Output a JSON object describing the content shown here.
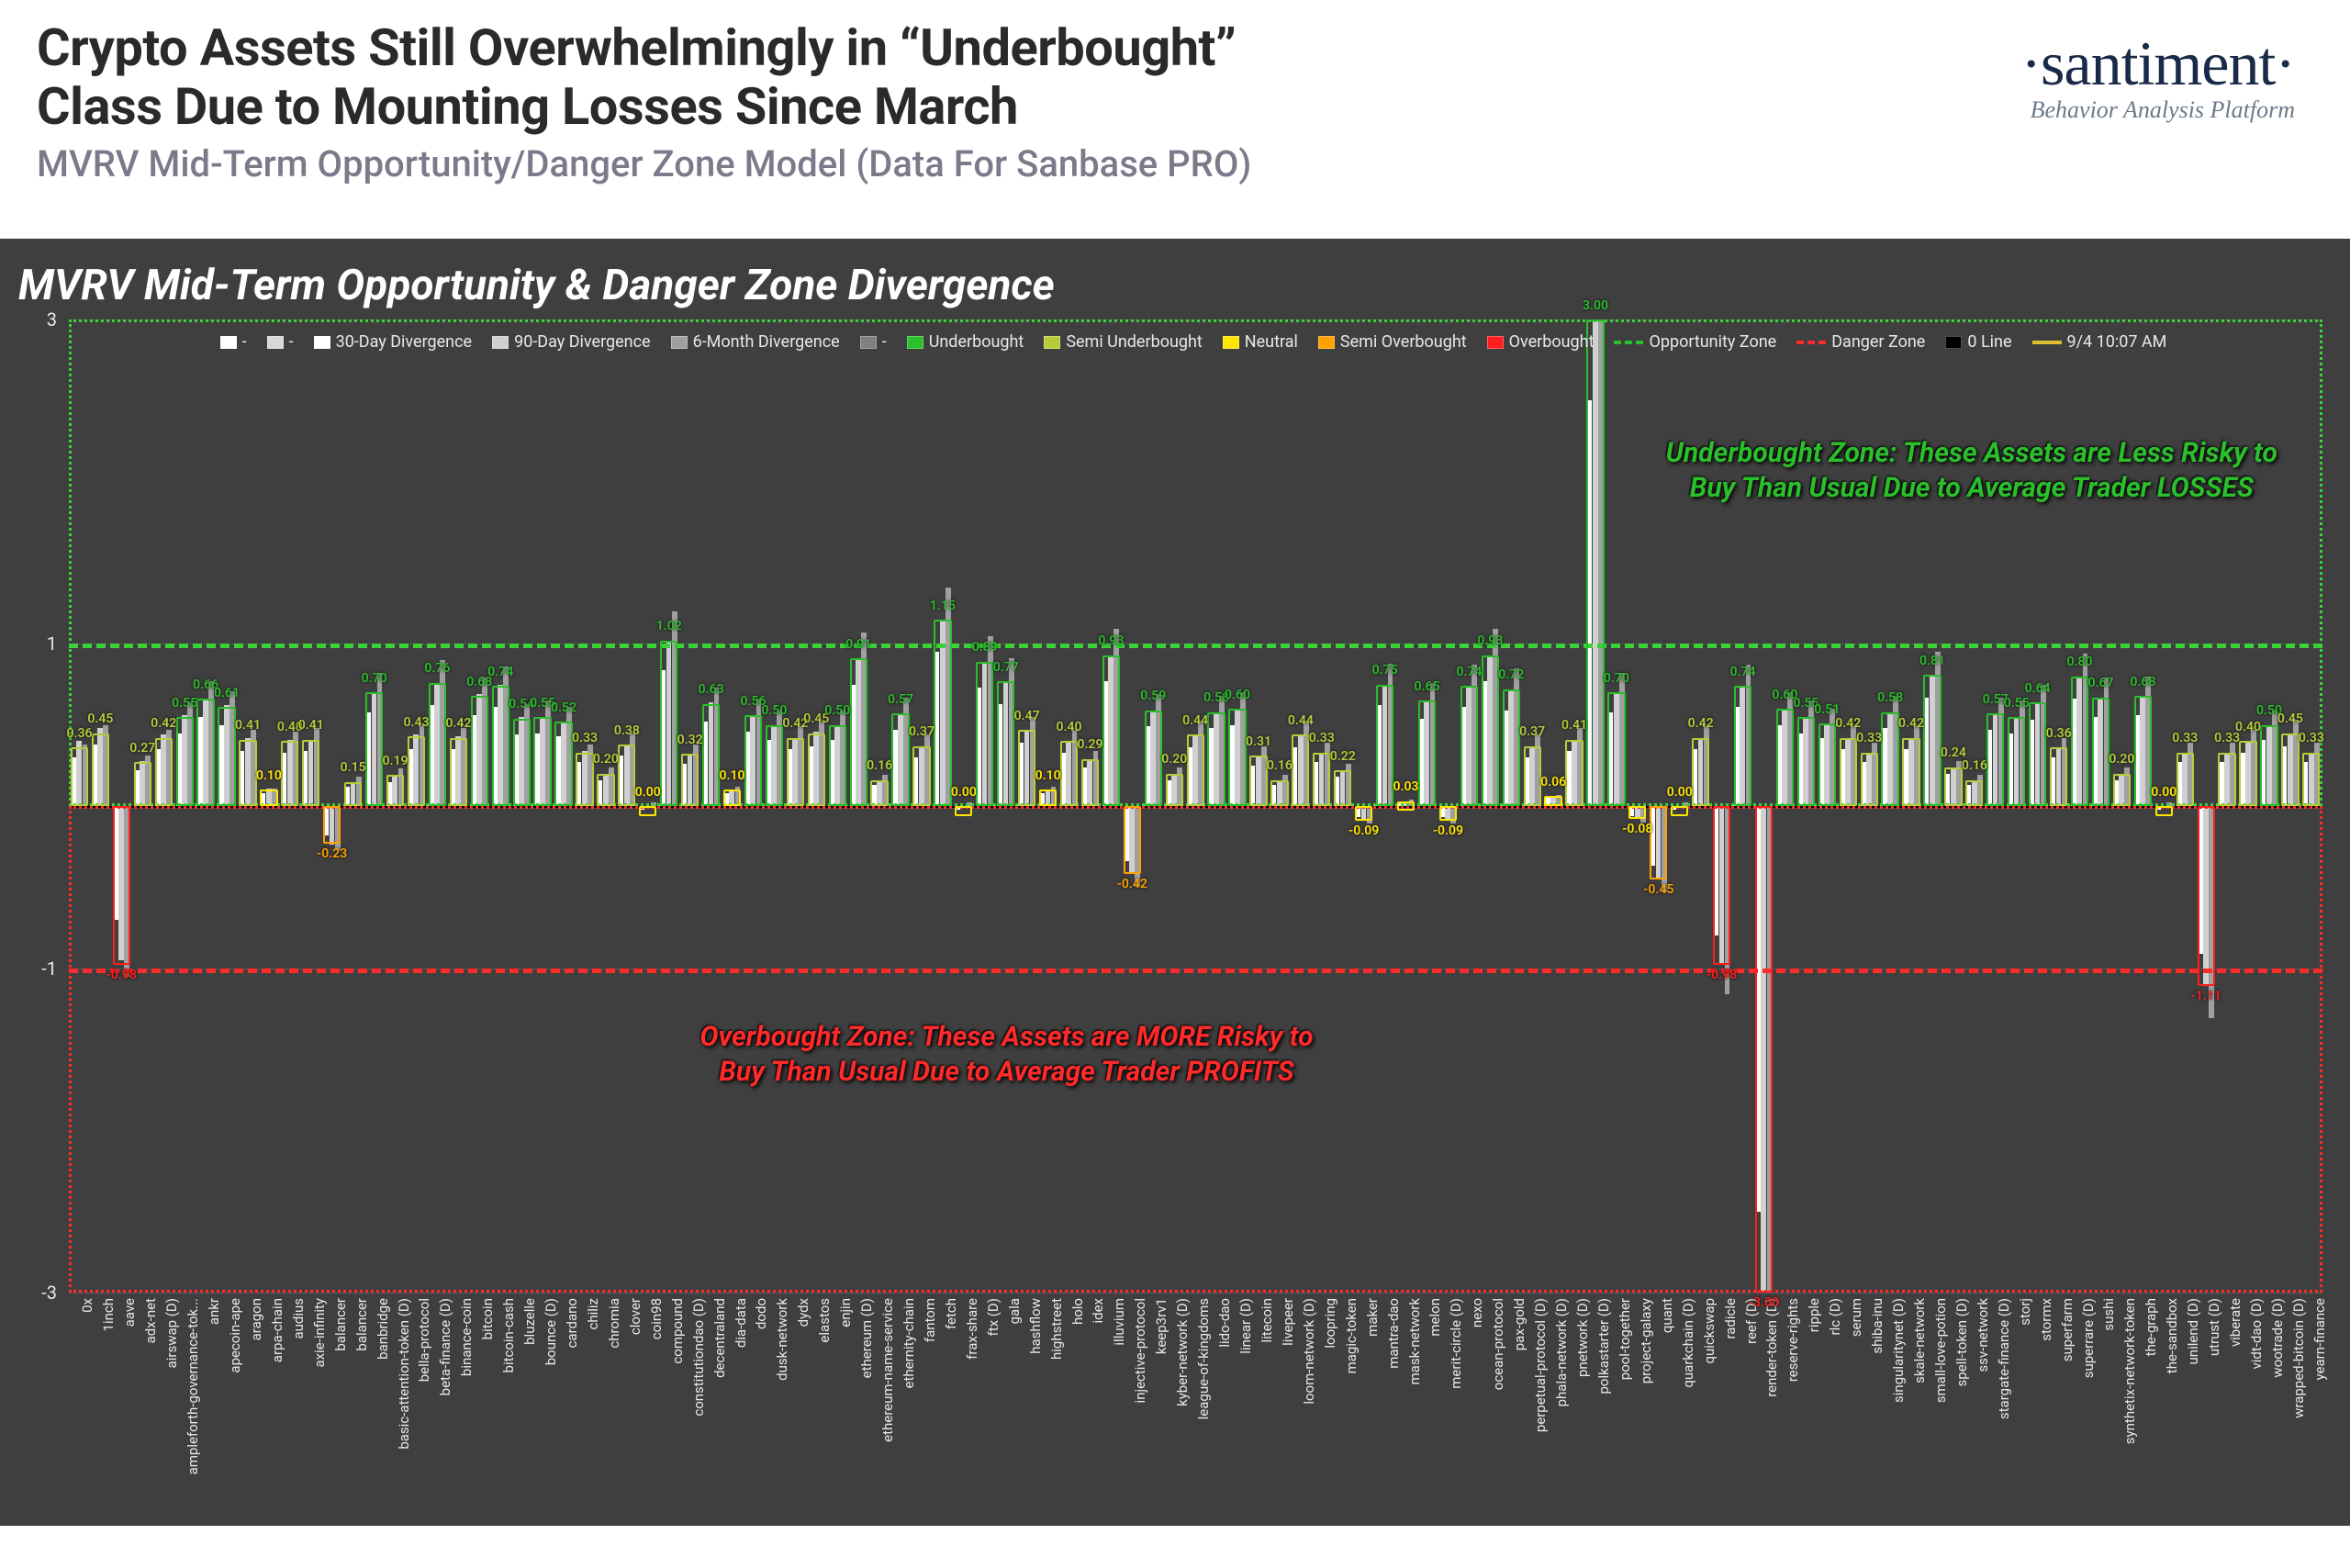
{
  "header": {
    "title_line1": "Crypto Assets Still Overwhelmingly in “Underbought”",
    "title_line2": "Class Due to Mounting Losses Since March",
    "subtitle": "MVRV Mid-Term Opportunity/Danger Zone Model (Data For Sanbase PRO)",
    "brand": "·santiment·",
    "tagline": "Behavior Analysis Platform"
  },
  "chart": {
    "title": "MVRV Mid-Term Opportunity & Danger Zone Divergence",
    "background": "#3f3f3f",
    "yaxis": {
      "min": -3,
      "max": 3,
      "ticks": [
        -3,
        -1,
        1,
        3
      ]
    },
    "zones": {
      "opportunity_line": 1,
      "danger_line": -1,
      "opportunity_color": "#3bd13b",
      "danger_color": "#ff2a2a",
      "zero_color": "#000000"
    },
    "legend": [
      {
        "type": "swatch",
        "color": "#ffffff",
        "label": "-"
      },
      {
        "type": "swatch",
        "color": "#d8d8d8",
        "label": "-"
      },
      {
        "type": "swatch",
        "color": "#ffffff",
        "label": "30-Day Divergence"
      },
      {
        "type": "swatch",
        "color": "#d0d0d0",
        "label": "90-Day Divergence"
      },
      {
        "type": "swatch",
        "color": "#a0a0a0",
        "label": "6-Month Divergence"
      },
      {
        "type": "swatch",
        "color": "#808080",
        "label": "-"
      },
      {
        "type": "swatch",
        "color": "#2bbf2b",
        "label": "Underbought"
      },
      {
        "type": "swatch",
        "color": "#b8cc3a",
        "label": "Semi Underbought"
      },
      {
        "type": "swatch",
        "color": "#ffe600",
        "label": "Neutral"
      },
      {
        "type": "swatch",
        "color": "#ffa200",
        "label": "Semi Overbought"
      },
      {
        "type": "swatch",
        "color": "#ff1e1e",
        "label": "Overbought"
      },
      {
        "type": "line",
        "color": "#2bbf2b",
        "label": "Opportunity Zone",
        "dash": true
      },
      {
        "type": "line",
        "color": "#ff2a2a",
        "label": "Danger Zone",
        "dash": true
      },
      {
        "type": "swatch",
        "color": "#000000",
        "label": "0 Line"
      },
      {
        "type": "line",
        "color": "#e0c030",
        "label": "9/4 10:07 AM",
        "dash": false
      }
    ],
    "annotations": {
      "underbought": "Underbought Zone: These Assets are Less Risky to\nBuy Than Usual Due to Average Trader LOSSES",
      "overbought": "Overbought Zone: These Assets are MORE Risky to\nBuy Than Usual Due to Average Trader PROFITS"
    },
    "class_colors": {
      "underbought": "#2bbf2b",
      "semi_under": "#b8cc3a",
      "neutral": "#ffe600",
      "semi_over": "#ffa200",
      "overbought": "#ff1e1e"
    },
    "assets": [
      {
        "n": "0x",
        "v": 0.36,
        "d": [
          0.3,
          0.4,
          0.38
        ]
      },
      {
        "n": "1inch",
        "v": 0.45,
        "d": [
          0.38,
          0.48,
          0.5
        ]
      },
      {
        "n": "aave",
        "v": -0.98,
        "d": [
          -0.7,
          -0.95,
          -1.05
        ]
      },
      {
        "n": "adx-net",
        "v": 0.27,
        "d": [
          0.22,
          0.28,
          0.31
        ]
      },
      {
        "n": "airswap (D)",
        "v": 0.42,
        "d": [
          0.35,
          0.44,
          0.47
        ]
      },
      {
        "n": "ampleforth-governance-tok...",
        "v": 0.55,
        "d": [
          0.45,
          0.56,
          0.64
        ]
      },
      {
        "n": "ankr",
        "v": 0.66,
        "d": [
          0.55,
          0.66,
          0.77
        ]
      },
      {
        "n": "apecoin-ape",
        "v": 0.61,
        "d": [
          0.5,
          0.62,
          0.71
        ]
      },
      {
        "n": "aragon",
        "v": 0.41,
        "d": [
          0.34,
          0.42,
          0.47
        ]
      },
      {
        "n": "arpa-chain",
        "v": 0.1,
        "d": [
          0.08,
          0.11,
          0.11
        ]
      },
      {
        "n": "audius",
        "v": 0.4,
        "d": [
          0.33,
          0.41,
          0.46
        ]
      },
      {
        "n": "axie-infinity",
        "v": 0.41,
        "d": [
          0.34,
          0.41,
          0.48
        ]
      },
      {
        "n": "balancer",
        "v": -0.23,
        "d": [
          -0.18,
          -0.24,
          -0.27
        ]
      },
      {
        "n": "balancer",
        "v": 0.15,
        "d": [
          0.12,
          0.15,
          0.18
        ]
      },
      {
        "n": "banbridge",
        "v": 0.7,
        "d": [
          0.58,
          0.7,
          0.82
        ]
      },
      {
        "n": "basic-attention-token (D)",
        "v": 0.19,
        "d": [
          0.15,
          0.19,
          0.23
        ]
      },
      {
        "n": "bella-protocol",
        "v": 0.43,
        "d": [
          0.35,
          0.44,
          0.5
        ]
      },
      {
        "n": "beta-finance (D)",
        "v": 0.76,
        "d": [
          0.62,
          0.76,
          0.9
        ]
      },
      {
        "n": "binance-coin",
        "v": 0.42,
        "d": [
          0.35,
          0.43,
          0.48
        ]
      },
      {
        "n": "bitcoin",
        "v": 0.68,
        "d": [
          0.56,
          0.69,
          0.79
        ]
      },
      {
        "n": "bitcoin-cash",
        "v": 0.74,
        "d": [
          0.61,
          0.75,
          0.86
        ]
      },
      {
        "n": "bluzelle",
        "v": 0.54,
        "d": [
          0.44,
          0.55,
          0.63
        ]
      },
      {
        "n": "bounce (D)",
        "v": 0.55,
        "d": [
          0.45,
          0.55,
          0.65
        ]
      },
      {
        "n": "cardano",
        "v": 0.52,
        "d": [
          0.43,
          0.52,
          0.61
        ]
      },
      {
        "n": "chiliz",
        "v": 0.33,
        "d": [
          0.27,
          0.34,
          0.38
        ]
      },
      {
        "n": "chromia",
        "v": 0.2,
        "d": [
          0.16,
          0.2,
          0.24
        ]
      },
      {
        "n": "clover",
        "v": 0.38,
        "d": [
          0.31,
          0.38,
          0.45
        ]
      },
      {
        "n": "coin98",
        "v": 0.0,
        "d": [
          -0.02,
          0.0,
          0.02
        ]
      },
      {
        "n": "compound",
        "v": 1.02,
        "d": [
          0.84,
          1.02,
          1.2
        ]
      },
      {
        "n": "constitutiondao (D)",
        "v": 0.32,
        "d": [
          0.26,
          0.32,
          0.38
        ]
      },
      {
        "n": "decentraland",
        "v": 0.63,
        "d": [
          0.52,
          0.64,
          0.73
        ]
      },
      {
        "n": "dia-data",
        "v": 0.1,
        "d": [
          0.08,
          0.1,
          0.12
        ]
      },
      {
        "n": "dodo",
        "v": 0.56,
        "d": [
          0.46,
          0.56,
          0.66
        ]
      },
      {
        "n": "dusk-network",
        "v": 0.5,
        "d": [
          0.41,
          0.5,
          0.59
        ]
      },
      {
        "n": "dydx",
        "v": 0.42,
        "d": [
          0.35,
          0.42,
          0.49
        ]
      },
      {
        "n": "elastos",
        "v": 0.45,
        "d": [
          0.37,
          0.46,
          0.52
        ]
      },
      {
        "n": "enjin",
        "v": 0.5,
        "d": [
          0.41,
          0.5,
          0.59
        ]
      },
      {
        "n": "ethereum (D)",
        "v": 0.91,
        "d": [
          0.75,
          0.91,
          1.07
        ]
      },
      {
        "n": "ethereum-name-service",
        "v": 0.16,
        "d": [
          0.13,
          0.16,
          0.19
        ]
      },
      {
        "n": "ethernity-chain",
        "v": 0.57,
        "d": [
          0.47,
          0.57,
          0.67
        ]
      },
      {
        "n": "fantom",
        "v": 0.37,
        "d": [
          0.3,
          0.37,
          0.44
        ]
      },
      {
        "n": "fetch",
        "v": 1.15,
        "d": [
          0.95,
          1.15,
          1.35
        ]
      },
      {
        "n": "frax-share",
        "v": 0.0,
        "d": [
          -0.02,
          0.0,
          0.02
        ]
      },
      {
        "n": "ftx (D)",
        "v": 0.89,
        "d": [
          0.73,
          0.89,
          1.05
        ]
      },
      {
        "n": "gala",
        "v": 0.77,
        "d": [
          0.63,
          0.77,
          0.91
        ]
      },
      {
        "n": "hashflow",
        "v": 0.47,
        "d": [
          0.39,
          0.47,
          0.55
        ]
      },
      {
        "n": "highstreet",
        "v": 0.1,
        "d": [
          0.08,
          0.1,
          0.12
        ]
      },
      {
        "n": "holo",
        "v": 0.4,
        "d": [
          0.33,
          0.4,
          0.47
        ]
      },
      {
        "n": "idex",
        "v": 0.29,
        "d": [
          0.24,
          0.29,
          0.34
        ]
      },
      {
        "n": "illuvium",
        "v": 0.93,
        "d": [
          0.77,
          0.93,
          1.09
        ]
      },
      {
        "n": "injective-protocol",
        "v": -0.42,
        "d": [
          -0.34,
          -0.42,
          -0.5
        ]
      },
      {
        "n": "keep3rv1",
        "v": 0.59,
        "d": [
          0.49,
          0.59,
          0.69
        ]
      },
      {
        "n": "kyber-network (D)",
        "v": 0.2,
        "d": [
          0.16,
          0.2,
          0.24
        ]
      },
      {
        "n": "league-of-kingdoms",
        "v": 0.44,
        "d": [
          0.36,
          0.44,
          0.52
        ]
      },
      {
        "n": "lido-dao",
        "v": 0.58,
        "d": [
          0.48,
          0.58,
          0.68
        ]
      },
      {
        "n": "linear (D)",
        "v": 0.6,
        "d": [
          0.5,
          0.6,
          0.7
        ]
      },
      {
        "n": "litecoin",
        "v": 0.31,
        "d": [
          0.25,
          0.31,
          0.37
        ]
      },
      {
        "n": "livepeer",
        "v": 0.16,
        "d": [
          0.13,
          0.16,
          0.19
        ]
      },
      {
        "n": "loom-network (D)",
        "v": 0.44,
        "d": [
          0.36,
          0.44,
          0.52
        ]
      },
      {
        "n": "loopring",
        "v": 0.33,
        "d": [
          0.27,
          0.33,
          0.39
        ]
      },
      {
        "n": "magic-token",
        "v": 0.22,
        "d": [
          0.18,
          0.22,
          0.26
        ]
      },
      {
        "n": "maker",
        "v": -0.09,
        "d": [
          -0.07,
          -0.09,
          -0.11
        ]
      },
      {
        "n": "mantra-dao",
        "v": 0.75,
        "d": [
          0.62,
          0.75,
          0.88
        ]
      },
      {
        "n": "mask-network",
        "v": 0.03,
        "d": [
          0.02,
          0.03,
          0.04
        ]
      },
      {
        "n": "melon",
        "v": 0.65,
        "d": [
          0.54,
          0.65,
          0.76
        ]
      },
      {
        "n": "merit-circle (D)",
        "v": -0.09,
        "d": [
          -0.07,
          -0.09,
          -0.11
        ]
      },
      {
        "n": "nexo",
        "v": 0.74,
        "d": [
          0.61,
          0.74,
          0.87
        ]
      },
      {
        "n": "ocean-protocol",
        "v": 0.93,
        "d": [
          0.77,
          0.93,
          1.09
        ]
      },
      {
        "n": "pax-gold",
        "v": 0.72,
        "d": [
          0.59,
          0.72,
          0.85
        ]
      },
      {
        "n": "perpetual-protocol (D)",
        "v": 0.37,
        "d": [
          0.3,
          0.37,
          0.44
        ]
      },
      {
        "n": "phala-network (D)",
        "v": 0.06,
        "d": [
          0.05,
          0.06,
          0.07
        ]
      },
      {
        "n": "pnetwork (D)",
        "v": 0.41,
        "d": [
          0.34,
          0.41,
          0.48
        ]
      },
      {
        "n": "polkastarter (D)",
        "v": 3.0,
        "d": [
          2.5,
          3.0,
          3.5
        ]
      },
      {
        "n": "pool-together",
        "v": 0.7,
        "d": [
          0.58,
          0.7,
          0.82
        ]
      },
      {
        "n": "project-galaxy",
        "v": -0.08,
        "d": [
          -0.06,
          -0.08,
          -0.1
        ]
      },
      {
        "n": "quant",
        "v": -0.45,
        "d": [
          -0.37,
          -0.45,
          -0.53
        ]
      },
      {
        "n": "quarkchain (D)",
        "v": 0.0,
        "d": [
          -0.02,
          0.0,
          0.02
        ]
      },
      {
        "n": "quickswap",
        "v": 0.42,
        "d": [
          0.35,
          0.42,
          0.49
        ]
      },
      {
        "n": "radicle",
        "v": -0.98,
        "d": [
          -0.8,
          -0.98,
          -1.16
        ]
      },
      {
        "n": "reef (D)",
        "v": 0.74,
        "d": [
          0.61,
          0.74,
          0.87
        ]
      },
      {
        "n": "render-token (D)",
        "v": -3.0,
        "d": [
          -2.5,
          -3.0,
          -3.5
        ]
      },
      {
        "n": "reserve-rights",
        "v": 0.6,
        "d": [
          0.5,
          0.6,
          0.7
        ]
      },
      {
        "n": "ripple",
        "v": 0.55,
        "d": [
          0.45,
          0.55,
          0.65
        ]
      },
      {
        "n": "rlc (D)",
        "v": 0.51,
        "d": [
          0.42,
          0.51,
          0.6
        ]
      },
      {
        "n": "serum",
        "v": 0.42,
        "d": [
          0.35,
          0.42,
          0.49
        ]
      },
      {
        "n": "shiba-inu",
        "v": 0.33,
        "d": [
          0.27,
          0.33,
          0.39
        ]
      },
      {
        "n": "singularitynet (D)",
        "v": 0.58,
        "d": [
          0.48,
          0.58,
          0.68
        ]
      },
      {
        "n": "skale-network",
        "v": 0.42,
        "d": [
          0.35,
          0.42,
          0.49
        ]
      },
      {
        "n": "small-love-potion",
        "v": 0.81,
        "d": [
          0.67,
          0.81,
          0.95
        ]
      },
      {
        "n": "spell-token (D)",
        "v": 0.24,
        "d": [
          0.2,
          0.24,
          0.28
        ]
      },
      {
        "n": "ssv-network",
        "v": 0.16,
        "d": [
          0.13,
          0.16,
          0.19
        ]
      },
      {
        "n": "stargate-finance (D)",
        "v": 0.57,
        "d": [
          0.47,
          0.57,
          0.67
        ]
      },
      {
        "n": "storj",
        "v": 0.55,
        "d": [
          0.45,
          0.55,
          0.65
        ]
      },
      {
        "n": "stormx",
        "v": 0.64,
        "d": [
          0.53,
          0.64,
          0.75
        ]
      },
      {
        "n": "superfarm",
        "v": 0.36,
        "d": [
          0.3,
          0.36,
          0.42
        ]
      },
      {
        "n": "superrare (D)",
        "v": 0.8,
        "d": [
          0.66,
          0.8,
          0.94
        ]
      },
      {
        "n": "sushi",
        "v": 0.67,
        "d": [
          0.55,
          0.67,
          0.79
        ]
      },
      {
        "n": "synthetix-network-token",
        "v": 0.2,
        "d": [
          0.16,
          0.2,
          0.24
        ]
      },
      {
        "n": "the-graph",
        "v": 0.68,
        "d": [
          0.56,
          0.68,
          0.8
        ]
      },
      {
        "n": "the-sandbox",
        "v": 0.0,
        "d": [
          -0.02,
          0.0,
          0.02
        ]
      },
      {
        "n": "unilend (D)",
        "v": 0.33,
        "d": [
          0.27,
          0.33,
          0.39
        ]
      },
      {
        "n": "utrust (D)",
        "v": -1.11,
        "d": [
          -0.91,
          -1.11,
          -1.31
        ]
      },
      {
        "n": "viberate",
        "v": 0.33,
        "d": [
          0.27,
          0.33,
          0.39
        ]
      },
      {
        "n": "vidt-dao (D)",
        "v": 0.4,
        "d": [
          0.33,
          0.4,
          0.47
        ]
      },
      {
        "n": "wootrade (D)",
        "v": 0.5,
        "d": [
          0.41,
          0.5,
          0.59
        ]
      },
      {
        "n": "wrapped-bitcoin (D)",
        "v": 0.45,
        "d": [
          0.37,
          0.45,
          0.53
        ]
      },
      {
        "n": "yearn-finance",
        "v": 0.33,
        "d": [
          0.27,
          0.33,
          0.39
        ]
      }
    ]
  }
}
